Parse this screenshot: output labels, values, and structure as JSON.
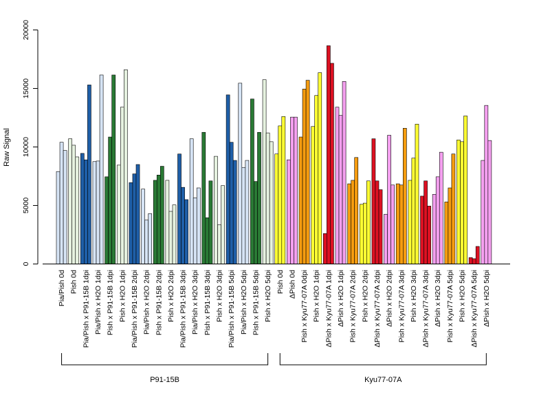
{
  "chart_data": {
    "type": "bar",
    "ylabel": "Raw Signal",
    "xlabel": "",
    "ylim": [
      0,
      20000
    ],
    "yticks": [
      0,
      5000,
      10000,
      15000,
      20000
    ],
    "colors": {
      "Pia/Pish": "#d6e4f5",
      "Pish": "#e6f2e0",
      "P91-15B": "#1f5fa8",
      "H2O": "#d6e4f5",
      "P91-15B_pish": "#2a7a35",
      "H2O_pish": "#e6f2e0",
      "dPish": "#f5a0f0",
      "Kyu77-07A_pish": "#f59c10",
      "Pish_yellow": "#ffff33",
      "Kyu77-07A_dpish": "#dd1122"
    },
    "categories": [
      {
        "label": "Pia/Pish 0d",
        "color": "#d6e4f5",
        "values": [
          7900,
          10400,
          9700
        ]
      },
      {
        "label": "Pish 0d",
        "color": "#e6f2e0",
        "values": [
          10700,
          10150,
          9150
        ]
      },
      {
        "label": "Pia/Pish x P91-15B 1dpi",
        "color": "#1f5fa8",
        "values": [
          9450,
          8900,
          15300
        ]
      },
      {
        "label": "Pia/Pish x H2O 1dpi",
        "color": "#d6e4f5",
        "values": [
          8750,
          8800,
          16150
        ]
      },
      {
        "label": "Pish x P91-15B 1dpi",
        "color": "#2a7a35",
        "values": [
          7450,
          10850,
          16150
        ]
      },
      {
        "label": "Pish x H2O 1dpi",
        "color": "#e6f2e0",
        "values": [
          8450,
          13400,
          16600
        ]
      },
      {
        "label": "Pia/Pish x P91-15B 2dpi",
        "color": "#1f5fa8",
        "values": [
          6950,
          7700,
          8500
        ]
      },
      {
        "label": "Pia/Pish x H2O 2dpi",
        "color": "#d6e4f5",
        "values": [
          6400,
          3750,
          4300
        ]
      },
      {
        "label": "Pish x P91-15B 2dpi",
        "color": "#2a7a35",
        "values": [
          7150,
          7600,
          8350
        ]
      },
      {
        "label": "Pish x H2O 2dpi",
        "color": "#e6f2e0",
        "values": [
          7150,
          4500,
          5050
        ]
      },
      {
        "label": "Pia/Pish x P91-15B 3dpi",
        "color": "#1f5fa8",
        "values": [
          9400,
          6550,
          5500
        ]
      },
      {
        "label": "Pia/Pish x H2O 3dpi",
        "color": "#d6e4f5",
        "values": [
          10700,
          5650,
          6500
        ]
      },
      {
        "label": "Pish x P91-15B 3dpi",
        "color": "#2a7a35",
        "values": [
          11250,
          3950,
          7100
        ]
      },
      {
        "label": "Pish x H2O 3dpi",
        "color": "#e6f2e0",
        "values": [
          9200,
          3350,
          6700
        ]
      },
      {
        "label": "Pia/Pish x P91-15B 5dpi",
        "color": "#1f5fa8",
        "values": [
          14450,
          10400,
          8850
        ]
      },
      {
        "label": "Pia/Pish x H2O 5dpi",
        "color": "#d6e4f5",
        "values": [
          15450,
          8250,
          8850
        ]
      },
      {
        "label": "Pish x P91-15B 5dpi",
        "color": "#2a7a35",
        "values": [
          14100,
          7050,
          11250
        ]
      },
      {
        "label": "Pish x H2O 5dpi",
        "color": "#e6f2e0",
        "values": [
          15750,
          11200,
          10450
        ]
      },
      {
        "label": "Pish 0d",
        "color": "#ffff33",
        "values": [
          9400,
          11800,
          12600
        ]
      },
      {
        "label": "ΔPish 0d",
        "color": "#f5a0f0",
        "values": [
          8900,
          12550,
          12550
        ]
      },
      {
        "label": "Pish x Kyu77-07A 0dpi",
        "color": "#f59c10",
        "values": [
          10850,
          14950,
          15700
        ]
      },
      {
        "label": "Pish x H2O 1dpi",
        "color": "#ffff33",
        "values": [
          11750,
          14400,
          16350
        ]
      },
      {
        "label": "ΔPish x Kyu77-07A 1dpi",
        "color": "#dd1122",
        "values": [
          2600,
          18650,
          17150
        ]
      },
      {
        "label": "ΔPish x H2O 1dpi",
        "color": "#f5a0f0",
        "values": [
          13400,
          12700,
          15600
        ]
      },
      {
        "label": "Pish x Kyu77-07A 2dpi",
        "color": "#f59c10",
        "values": [
          6850,
          7150,
          9100
        ]
      },
      {
        "label": "Pish x H2O 2dpi",
        "color": "#ffff33",
        "values": [
          5100,
          5200,
          7100
        ]
      },
      {
        "label": "ΔPish x Kyu77-07A 2dpi",
        "color": "#dd1122",
        "values": [
          10700,
          7100,
          6350
        ]
      },
      {
        "label": "ΔPish x H2O 2dpi",
        "color": "#f5a0f0",
        "values": [
          4250,
          11000,
          6750
        ]
      },
      {
        "label": "Pish x Kyu77-07A 3dpi",
        "color": "#f59c10",
        "values": [
          6850,
          6750,
          11600
        ]
      },
      {
        "label": "Pish x H2O 3dpi",
        "color": "#ffff33",
        "values": [
          7150,
          9050,
          11950
        ]
      },
      {
        "label": "ΔPish x Kyu77-07A 3dpi",
        "color": "#dd1122",
        "values": [
          5800,
          7100,
          4950
        ]
      },
      {
        "label": "ΔPish x H2O 3dpi",
        "color": "#f5a0f0",
        "values": [
          5950,
          7450,
          9550
        ]
      },
      {
        "label": "Pish x Kyu77-07A 5dpi",
        "color": "#f59c10",
        "values": [
          5300,
          6500,
          9400
        ]
      },
      {
        "label": "Pish x H2O 5dpi",
        "color": "#ffff33",
        "values": [
          10600,
          10450,
          12650
        ]
      },
      {
        "label": "ΔPish x Kyu77-07A 5dpi",
        "color": "#dd1122",
        "values": [
          550,
          450,
          1500
        ]
      },
      {
        "label": "ΔPish x H2O 5dpi",
        "color": "#f5a0f0",
        "values": [
          8850,
          13550,
          10550
        ]
      }
    ],
    "groups": [
      {
        "label": "P91-15B",
        "start": 0,
        "end": 17
      },
      {
        "label": "Kyu77-07A",
        "start": 18,
        "end": 35
      }
    ]
  }
}
